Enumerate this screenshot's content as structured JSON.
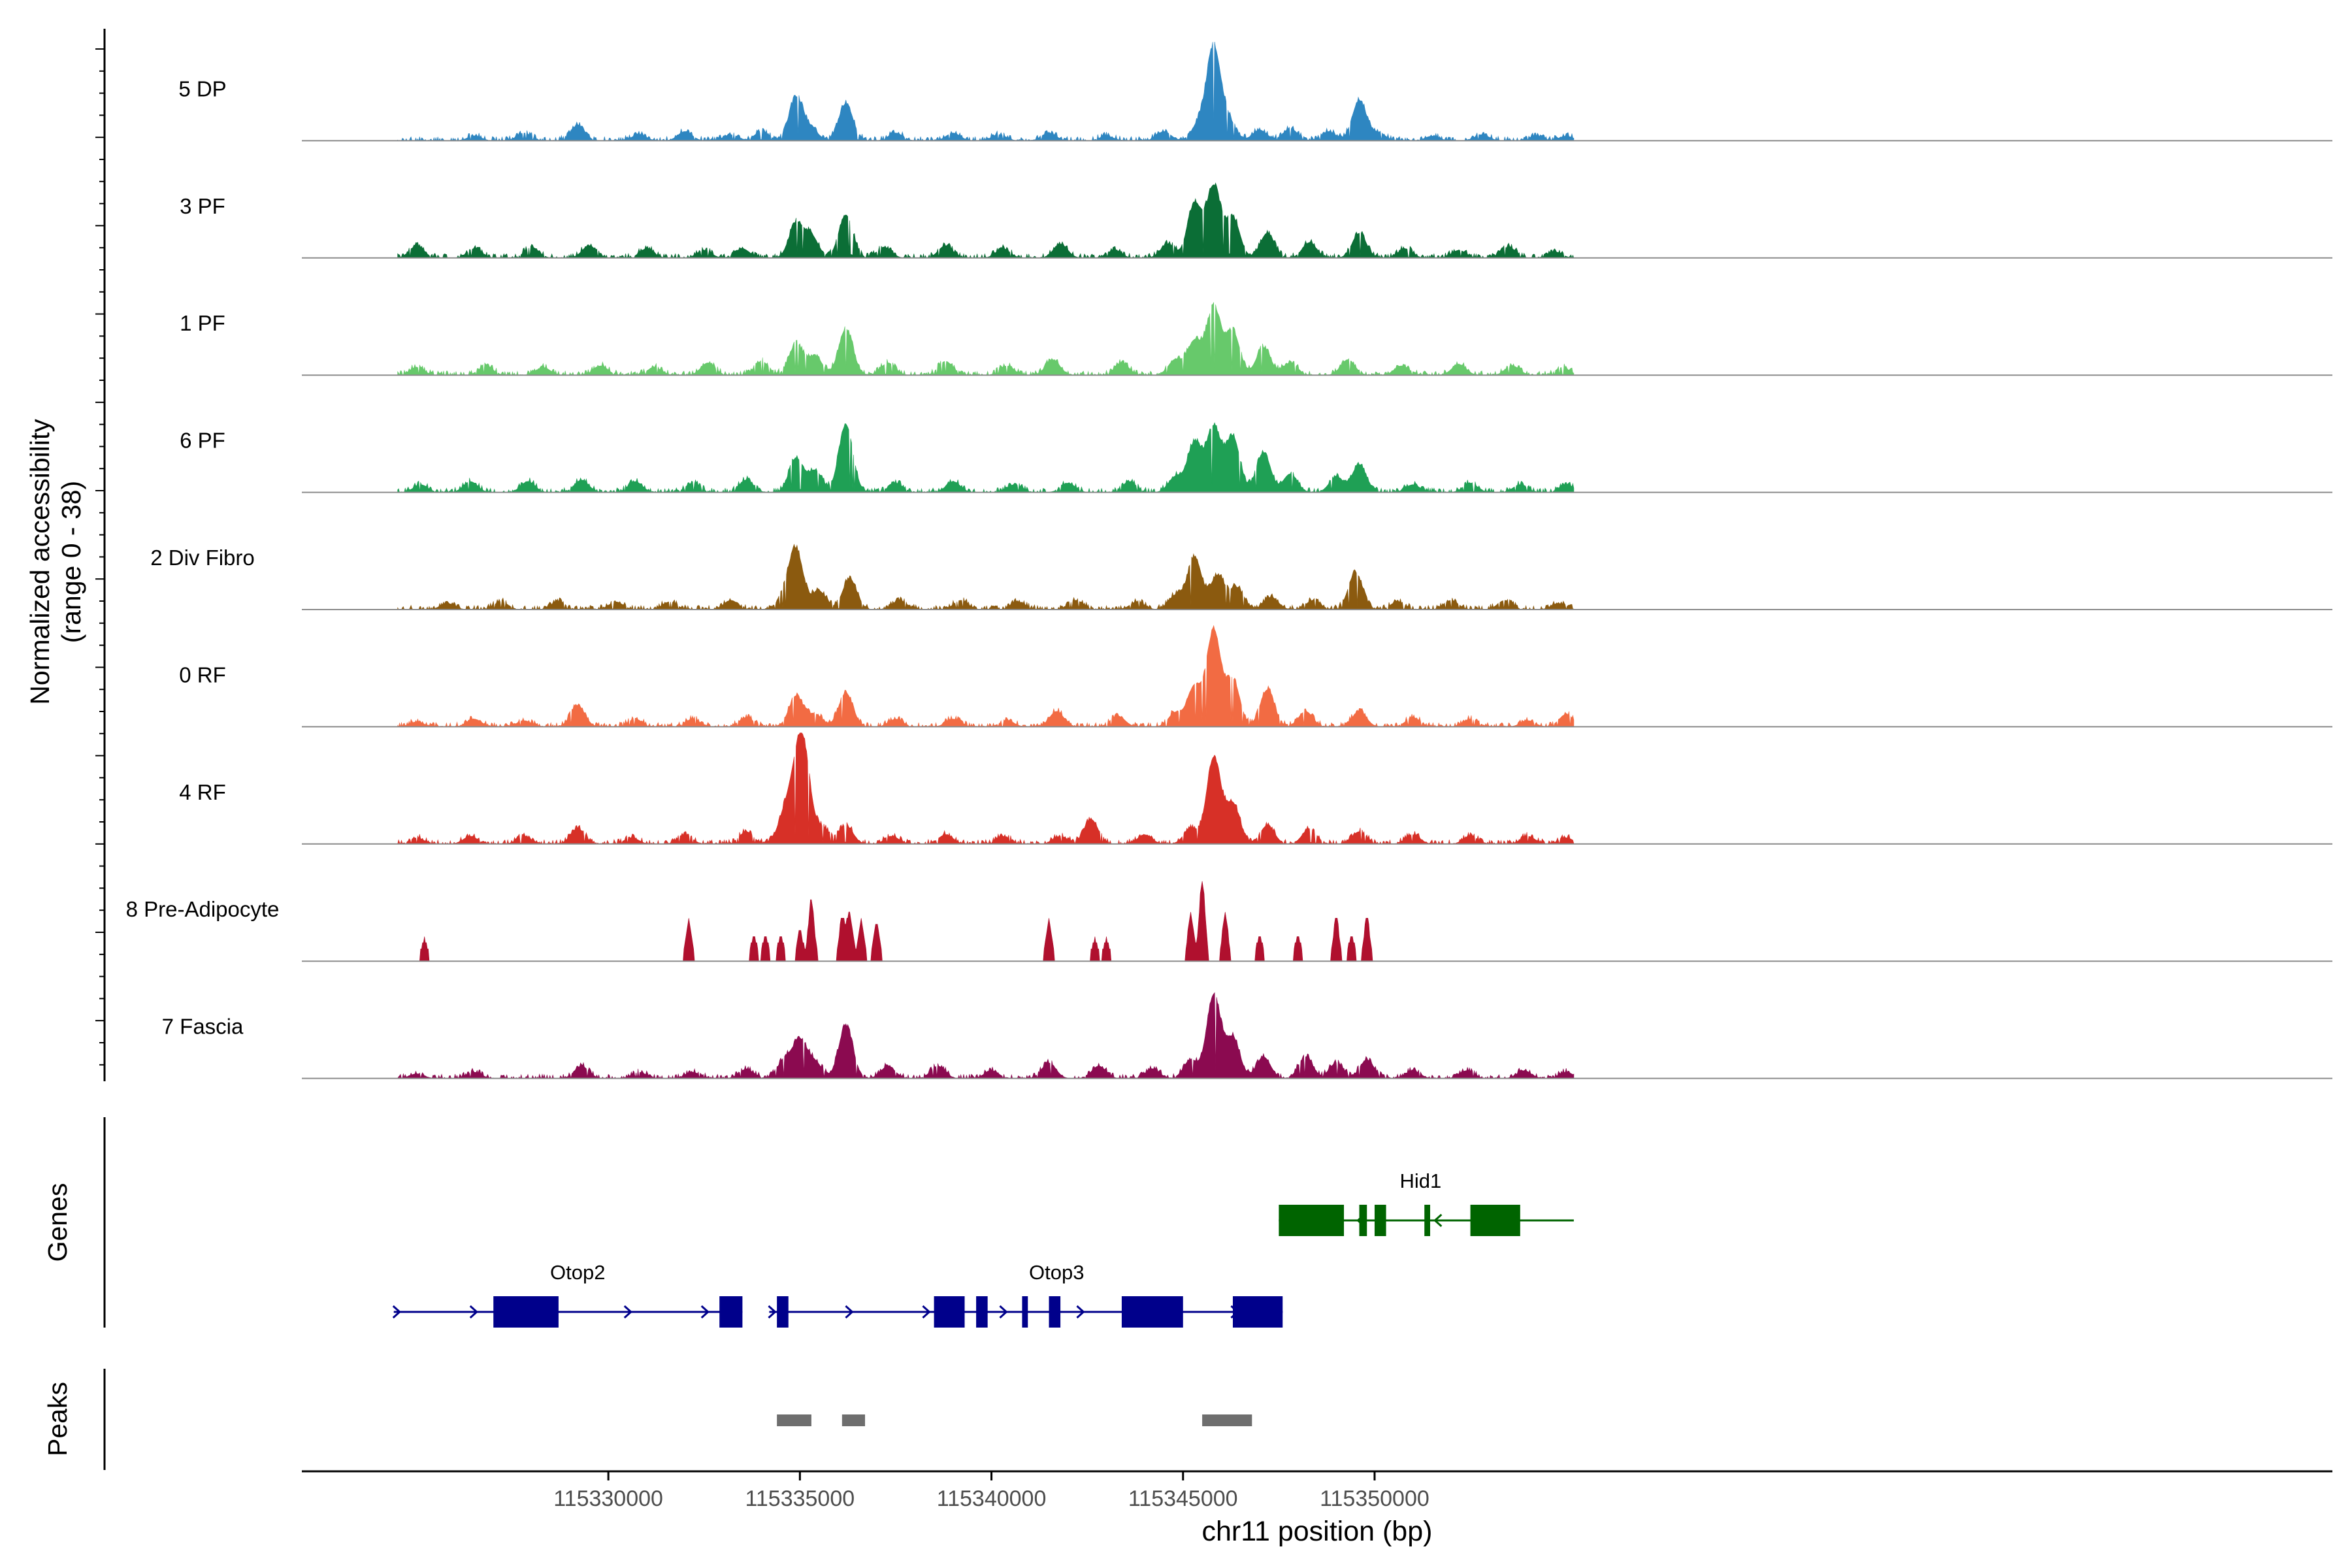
{
  "chart_data": {
    "type": "area",
    "title": "",
    "chrom": "chr11",
    "xlabel": "chr11 position (bp)",
    "ylabel_line1": "Normalized accessibility",
    "ylabel_line2": "(range 0 - 38)",
    "xlim": [
      115322000,
      115375000
    ],
    "ylim": [
      0,
      38
    ],
    "x_ticks": [
      115330000,
      115335000,
      115340000,
      115345000,
      115350000
    ],
    "x_tick_labels": [
      "115330000",
      "115335000",
      "115340000",
      "115345000",
      "115350000"
    ],
    "signal_region": [
      115324500,
      115355200
    ],
    "tracks": [
      {
        "name": "5 DP",
        "color": "#2E86C1",
        "peaks": [
          [
            115326500,
            3
          ],
          [
            115327800,
            5
          ],
          [
            115329200,
            10
          ],
          [
            115330800,
            4
          ],
          [
            115332000,
            6
          ],
          [
            115333200,
            4
          ],
          [
            115334000,
            6
          ],
          [
            115334900,
            28
          ],
          [
            115335300,
            7
          ],
          [
            115336200,
            24
          ],
          [
            115337500,
            5
          ],
          [
            115339000,
            5
          ],
          [
            115340200,
            4
          ],
          [
            115341500,
            5
          ],
          [
            115343000,
            3
          ],
          [
            115344500,
            6
          ],
          [
            115345400,
            10
          ],
          [
            115345800,
            60
          ],
          [
            115346200,
            12
          ],
          [
            115347000,
            7
          ],
          [
            115347800,
            8
          ],
          [
            115348800,
            6
          ],
          [
            115349600,
            26
          ],
          [
            115350100,
            5
          ],
          [
            115351500,
            3
          ],
          [
            115352800,
            4
          ],
          [
            115354200,
            3
          ],
          [
            115355000,
            3
          ]
        ]
      },
      {
        "name": "3 PF",
        "color": "#0B6E36",
        "peaks": [
          [
            115325000,
            8
          ],
          [
            115326500,
            6
          ],
          [
            115328000,
            7
          ],
          [
            115329500,
            8
          ],
          [
            115331000,
            6
          ],
          [
            115332500,
            5
          ],
          [
            115333500,
            6
          ],
          [
            115334900,
            22
          ],
          [
            115335300,
            14
          ],
          [
            115336200,
            28
          ],
          [
            115337200,
            7
          ],
          [
            115338800,
            8
          ],
          [
            115340300,
            6
          ],
          [
            115341800,
            9
          ],
          [
            115343200,
            5
          ],
          [
            115344600,
            9
          ],
          [
            115345300,
            35
          ],
          [
            115345800,
            46
          ],
          [
            115346300,
            26
          ],
          [
            115347200,
            16
          ],
          [
            115348300,
            10
          ],
          [
            115349600,
            16
          ],
          [
            115350800,
            6
          ],
          [
            115352200,
            5
          ],
          [
            115353500,
            7
          ],
          [
            115354700,
            4
          ]
        ]
      },
      {
        "name": "1 PF",
        "color": "#67C96B",
        "peaks": [
          [
            115325000,
            5
          ],
          [
            115326800,
            6
          ],
          [
            115328300,
            5
          ],
          [
            115329800,
            6
          ],
          [
            115331200,
            5
          ],
          [
            115332600,
            8
          ],
          [
            115334000,
            9
          ],
          [
            115334900,
            20
          ],
          [
            115335400,
            12
          ],
          [
            115336200,
            30
          ],
          [
            115337300,
            8
          ],
          [
            115338800,
            9
          ],
          [
            115340400,
            6
          ],
          [
            115341600,
            10
          ],
          [
            115343400,
            8
          ],
          [
            115344800,
            10
          ],
          [
            115345300,
            22
          ],
          [
            115345800,
            44
          ],
          [
            115346300,
            28
          ],
          [
            115347100,
            18
          ],
          [
            115347800,
            8
          ],
          [
            115349300,
            10
          ],
          [
            115350700,
            6
          ],
          [
            115352200,
            7
          ],
          [
            115353600,
            6
          ],
          [
            115354900,
            5
          ]
        ]
      },
      {
        "name": "6 PF",
        "color": "#1FA055",
        "peaks": [
          [
            115325100,
            5
          ],
          [
            115326400,
            7
          ],
          [
            115327900,
            7
          ],
          [
            115329300,
            8
          ],
          [
            115330700,
            7
          ],
          [
            115332200,
            6
          ],
          [
            115333600,
            8
          ],
          [
            115334900,
            22
          ],
          [
            115335400,
            14
          ],
          [
            115336200,
            44
          ],
          [
            115337500,
            6
          ],
          [
            115339000,
            7
          ],
          [
            115340600,
            5
          ],
          [
            115342000,
            6
          ],
          [
            115343600,
            7
          ],
          [
            115344800,
            10
          ],
          [
            115345300,
            32
          ],
          [
            115345800,
            42
          ],
          [
            115346300,
            36
          ],
          [
            115347100,
            26
          ],
          [
            115347800,
            12
          ],
          [
            115349000,
            10
          ],
          [
            115349600,
            18
          ],
          [
            115351000,
            5
          ],
          [
            115352500,
            6
          ],
          [
            115353800,
            5
          ],
          [
            115355000,
            5
          ]
        ]
      },
      {
        "name": "2 Div Fibro",
        "color": "#8B5A0F",
        "peaks": [
          [
            115325800,
            4
          ],
          [
            115327200,
            5
          ],
          [
            115328700,
            5
          ],
          [
            115330200,
            5
          ],
          [
            115331600,
            5
          ],
          [
            115333200,
            6
          ],
          [
            115334600,
            8
          ],
          [
            115334900,
            38
          ],
          [
            115335500,
            12
          ],
          [
            115336300,
            20
          ],
          [
            115337600,
            6
          ],
          [
            115339200,
            6
          ],
          [
            115340700,
            5
          ],
          [
            115342200,
            6
          ],
          [
            115343800,
            5
          ],
          [
            115344800,
            9
          ],
          [
            115345300,
            34
          ],
          [
            115345900,
            22
          ],
          [
            115346400,
            14
          ],
          [
            115347300,
            8
          ],
          [
            115348400,
            6
          ],
          [
            115349500,
            24
          ],
          [
            115350600,
            5
          ],
          [
            115352000,
            6
          ],
          [
            115353400,
            6
          ],
          [
            115354800,
            4
          ]
        ]
      },
      {
        "name": "0 RF",
        "color": "#F26B43",
        "peaks": [
          [
            115325000,
            3
          ],
          [
            115326500,
            5
          ],
          [
            115327800,
            4
          ],
          [
            115329200,
            14
          ],
          [
            115330700,
            5
          ],
          [
            115332200,
            5
          ],
          [
            115333600,
            6
          ],
          [
            115334900,
            20
          ],
          [
            115335400,
            8
          ],
          [
            115336200,
            22
          ],
          [
            115337500,
            5
          ],
          [
            115339000,
            5
          ],
          [
            115340400,
            4
          ],
          [
            115341700,
            10
          ],
          [
            115343300,
            7
          ],
          [
            115344800,
            9
          ],
          [
            115345300,
            26
          ],
          [
            115345800,
            62
          ],
          [
            115346300,
            30
          ],
          [
            115347200,
            24
          ],
          [
            115348200,
            10
          ],
          [
            115349600,
            10
          ],
          [
            115351000,
            6
          ],
          [
            115352500,
            5
          ],
          [
            115354000,
            4
          ],
          [
            115355000,
            8
          ]
        ]
      },
      {
        "name": "4 RF",
        "color": "#D73027",
        "peaks": [
          [
            115325000,
            4
          ],
          [
            115326400,
            5
          ],
          [
            115327800,
            5
          ],
          [
            115329200,
            10
          ],
          [
            115330600,
            4
          ],
          [
            115332000,
            6
          ],
          [
            115333600,
            8
          ],
          [
            115334600,
            18
          ],
          [
            115334900,
            30
          ],
          [
            115335100,
            52
          ],
          [
            115335600,
            10
          ],
          [
            115336200,
            12
          ],
          [
            115337400,
            5
          ],
          [
            115338800,
            6
          ],
          [
            115340300,
            5
          ],
          [
            115341800,
            5
          ],
          [
            115342600,
            16
          ],
          [
            115344000,
            6
          ],
          [
            115345200,
            10
          ],
          [
            115345800,
            56
          ],
          [
            115346300,
            26
          ],
          [
            115347200,
            12
          ],
          [
            115348300,
            10
          ],
          [
            115349600,
            8
          ],
          [
            115351000,
            6
          ],
          [
            115352500,
            5
          ],
          [
            115354000,
            5
          ],
          [
            115355000,
            4
          ]
        ]
      },
      {
        "name": "8 Pre-Adipocyte",
        "color": "#B0102E",
        "peaks": [
          [
            115325200,
            14
          ],
          [
            115332100,
            26
          ],
          [
            115335000,
            20
          ],
          [
            115335300,
            40
          ],
          [
            115336100,
            28
          ],
          [
            115336300,
            30
          ],
          [
            115336600,
            26
          ],
          [
            115337000,
            24
          ],
          [
            115333800,
            16
          ],
          [
            115334100,
            16
          ],
          [
            115334500,
            16
          ],
          [
            115341500,
            26
          ],
          [
            115342700,
            14
          ],
          [
            115343000,
            14
          ],
          [
            115345200,
            30
          ],
          [
            115345500,
            52
          ],
          [
            115346100,
            30
          ],
          [
            115349000,
            28
          ],
          [
            115349400,
            16
          ],
          [
            115349800,
            28
          ],
          [
            115347000,
            16
          ],
          [
            115348000,
            16
          ]
        ]
      },
      {
        "name": "7 Fascia",
        "color": "#8B0A50",
        "peaks": [
          [
            115325000,
            3
          ],
          [
            115326500,
            4
          ],
          [
            115329300,
            8
          ],
          [
            115330800,
            4
          ],
          [
            115332200,
            4
          ],
          [
            115333600,
            6
          ],
          [
            115334600,
            12
          ],
          [
            115335000,
            24
          ],
          [
            115335400,
            10
          ],
          [
            115336200,
            34
          ],
          [
            115337300,
            8
          ],
          [
            115338600,
            8
          ],
          [
            115340000,
            5
          ],
          [
            115341500,
            10
          ],
          [
            115342800,
            8
          ],
          [
            115344200,
            6
          ],
          [
            115345200,
            12
          ],
          [
            115345800,
            54
          ],
          [
            115346300,
            26
          ],
          [
            115347100,
            14
          ],
          [
            115348200,
            14
          ],
          [
            115349000,
            10
          ],
          [
            115349800,
            12
          ],
          [
            115351000,
            5
          ],
          [
            115352400,
            5
          ],
          [
            115353900,
            5
          ],
          [
            115355000,
            4
          ]
        ]
      }
    ],
    "genes_label": "Genes",
    "genes": [
      {
        "name": "Otop2",
        "strand": "+",
        "row": 2,
        "start": 115324400,
        "end": 115333500,
        "exons": [
          [
            115327000,
            115328700
          ],
          [
            115332900,
            115333500
          ]
        ],
        "label_pos": 115329200
      },
      {
        "name": "Otop3",
        "strand": "+",
        "row": 2,
        "start": 115334200,
        "end": 115347600,
        "exons": [
          [
            115334400,
            115334700
          ],
          [
            115338500,
            115339300
          ],
          [
            115339600,
            115339900
          ],
          [
            115340800,
            115340950
          ],
          [
            115341500,
            115341800
          ],
          [
            115343400,
            115345000
          ],
          [
            115346300,
            115347600
          ]
        ],
        "label_pos": 115341700
      },
      {
        "name": "Hid1",
        "strand": "-",
        "row": 1,
        "start": 115347500,
        "end": 115355200,
        "exons": [
          [
            115347500,
            115349200
          ],
          [
            115349600,
            115349800
          ],
          [
            115350000,
            115350300
          ],
          [
            115351300,
            115351450
          ],
          [
            115352500,
            115353800
          ]
        ],
        "label_pos": 115351200
      }
    ],
    "peaks_label": "Peaks",
    "called_peaks": [
      [
        115334400,
        115335300
      ],
      [
        115336100,
        115336700
      ],
      [
        115345500,
        115346800
      ]
    ]
  },
  "colors": {
    "otop_genes": "#00008B",
    "hid1_gene": "#006400",
    "peak_bar": "#6E6E6E",
    "baseline": "#8C8C8C"
  }
}
